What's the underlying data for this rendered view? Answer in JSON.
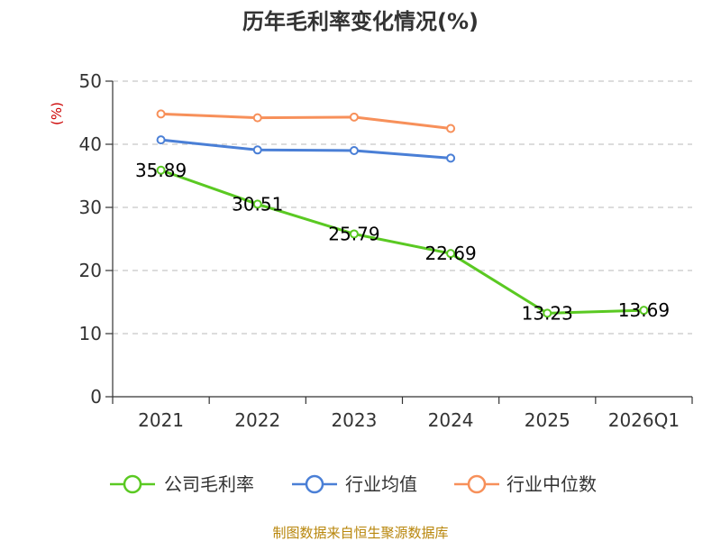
{
  "chart_data": {
    "type": "line",
    "title": "历年毛利率变化情况(%)",
    "ylabel": "(%)",
    "xlabel": "",
    "categories": [
      "2021",
      "2022",
      "2023",
      "2024",
      "2025",
      "2026Q1"
    ],
    "ylim": [
      0,
      50
    ],
    "yticks": [
      0,
      10,
      20,
      30,
      40,
      50
    ],
    "grid": true,
    "legend_position": "bottom",
    "series": [
      {
        "name": "公司毛利率",
        "color": "#5ac922",
        "values": [
          35.89,
          30.51,
          25.79,
          22.69,
          13.23,
          13.69
        ],
        "labels": [
          "35.89",
          "30.51",
          "25.79",
          "22.69",
          "13.23",
          "13.69"
        ]
      },
      {
        "name": "行业均值",
        "color": "#4a7fd6",
        "values": [
          40.7,
          39.1,
          39.0,
          37.8,
          null,
          null
        ],
        "labels": []
      },
      {
        "name": "行业中位数",
        "color": "#f7905a",
        "values": [
          44.8,
          44.2,
          44.3,
          42.5,
          null,
          null
        ],
        "labels": []
      }
    ],
    "source": "制图数据来自恒生聚源数据库"
  }
}
